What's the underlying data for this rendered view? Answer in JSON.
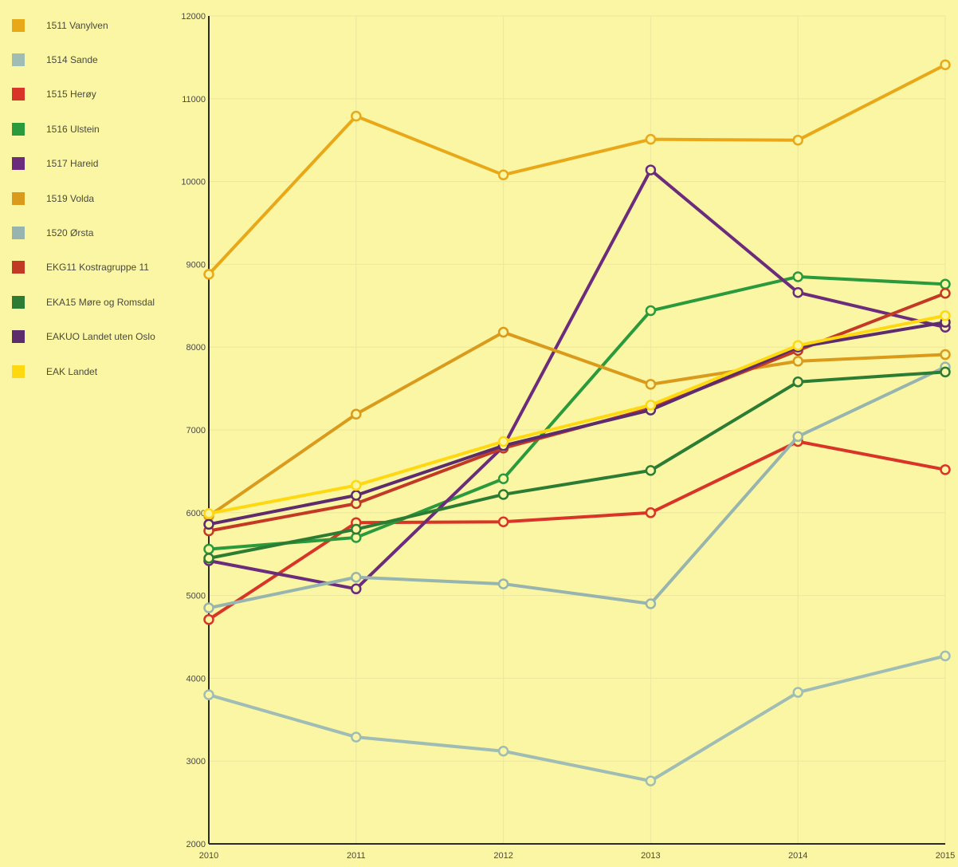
{
  "chart_data": {
    "type": "line",
    "title": "",
    "xlabel": "",
    "ylabel": "",
    "x": [
      "2010",
      "2011",
      "2012",
      "2013",
      "2014",
      "2015"
    ],
    "ylim": [
      2000,
      12000
    ],
    "yticks": [
      2000,
      3000,
      4000,
      5000,
      6000,
      7000,
      8000,
      9000,
      10000,
      11000,
      12000
    ],
    "grid": true,
    "legend_position": "left",
    "series": [
      {
        "name": "1511 Vanylven",
        "color": "#e8a818",
        "values": [
          8880,
          10790,
          10080,
          10510,
          10500,
          11410
        ]
      },
      {
        "name": "1514 Sande",
        "color": "#9fbdb4",
        "values": [
          3800,
          3290,
          3120,
          2760,
          3830,
          4270
        ]
      },
      {
        "name": "1515 Herøy",
        "color": "#d83428",
        "values": [
          4710,
          5880,
          5890,
          6000,
          6860,
          6520
        ]
      },
      {
        "name": "1516 Ulstein",
        "color": "#2a9a3c",
        "values": [
          5560,
          5700,
          6410,
          8440,
          8850,
          8760
        ]
      },
      {
        "name": "1517 Hareid",
        "color": "#6b2c7c",
        "values": [
          5420,
          5080,
          6800,
          10140,
          8660,
          8240
        ]
      },
      {
        "name": "1519 Volda",
        "color": "#da9a1c",
        "values": [
          5960,
          7190,
          8180,
          7550,
          7830,
          7910
        ]
      },
      {
        "name": "1520 Ørsta",
        "color": "#97b4ae",
        "values": [
          4850,
          5220,
          5140,
          4900,
          6920,
          7760
        ]
      },
      {
        "name": "EKG11 Kostragruppe 11",
        "color": "#c23a24",
        "values": [
          5780,
          6110,
          6780,
          7260,
          7960,
          8650
        ]
      },
      {
        "name": "EKA15 Møre og Romsdal",
        "color": "#2c7c34",
        "values": [
          5450,
          5800,
          6220,
          6510,
          7580,
          7700
        ]
      },
      {
        "name": "EAKUO Landet uten Oslo",
        "color": "#5c2c6c",
        "values": [
          5860,
          6210,
          6810,
          7240,
          8000,
          8300
        ]
      },
      {
        "name": "EAK Landet",
        "color": "#ffd810",
        "values": [
          5990,
          6330,
          6860,
          7300,
          8020,
          8380
        ]
      }
    ]
  }
}
